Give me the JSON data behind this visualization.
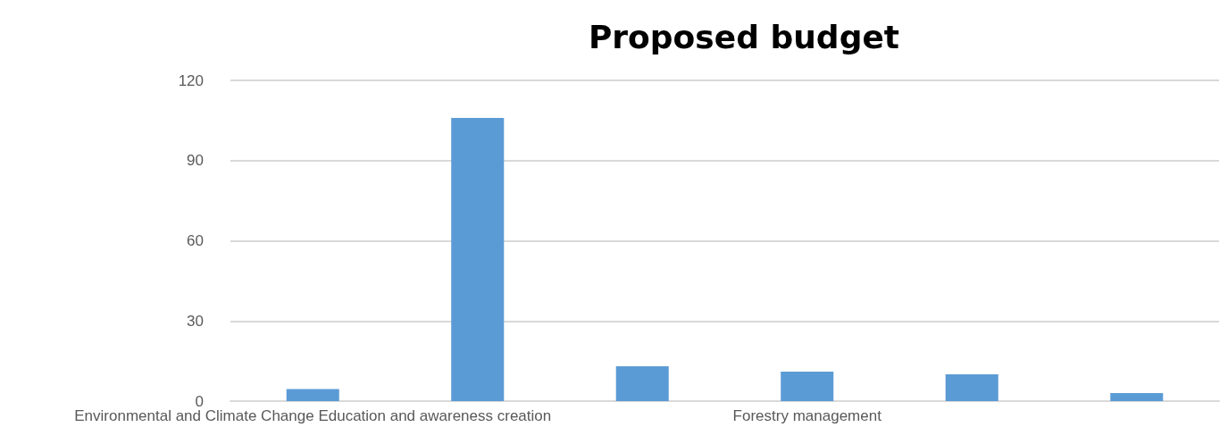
{
  "chart_data": {
    "type": "bar",
    "title": "Proposed budget",
    "categories": [
      "Environmental and Climate Change Education and awareness creation",
      null,
      null,
      "Forestry management",
      null,
      null
    ],
    "values": [
      4.5,
      106,
      13,
      11,
      10,
      3
    ],
    "color": "#5b9bd5",
    "ylim": [
      0,
      120
    ],
    "yticks": [
      0,
      30,
      60,
      90,
      120
    ],
    "grid": "y"
  }
}
